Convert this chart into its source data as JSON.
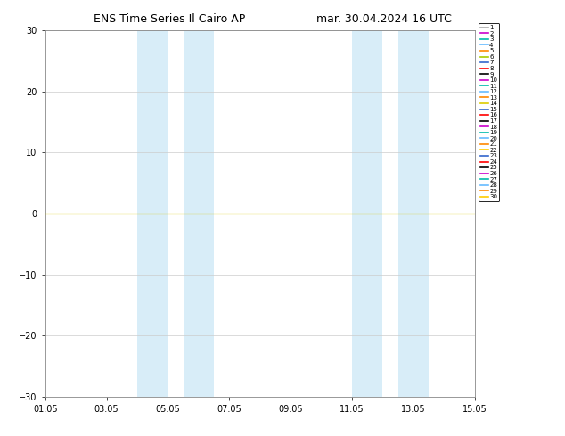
{
  "title": "ENS Time Series Il Cairo AP",
  "subtitle": "mar. 30.04.2024 16 UTC",
  "ylim": [
    -30,
    30
  ],
  "yticks": [
    -30,
    -20,
    -10,
    0,
    10,
    20,
    30
  ],
  "xlim": [
    0,
    14
  ],
  "xtick_positions": [
    0,
    2,
    4,
    6,
    8,
    10,
    12,
    14
  ],
  "xtick_labels": [
    "01.05",
    "03.05",
    "05.05",
    "07.05",
    "09.05",
    "11.05",
    "13.05",
    "15.05"
  ],
  "num_members": 30,
  "member_colors": [
    "#aaaaaa",
    "#cc00cc",
    "#00bbaa",
    "#66bbff",
    "#ff8800",
    "#aacc00",
    "#3366cc",
    "#ff0000",
    "#000000",
    "#cc00cc",
    "#00bbaa",
    "#66bbff",
    "#ff8800",
    "#ddcc00",
    "#3366cc",
    "#ff0000",
    "#000000",
    "#cc00cc",
    "#00bbaa",
    "#66bbff",
    "#ff8800",
    "#ffcc00",
    "#3366cc",
    "#ff0000",
    "#000000",
    "#cc00cc",
    "#00bbaa",
    "#66bbff",
    "#ff8800",
    "#ffcc00"
  ],
  "shaded_regions": [
    [
      3.0,
      4.0
    ],
    [
      4.5,
      5.5
    ],
    [
      10.0,
      11.0
    ],
    [
      11.5,
      12.5
    ]
  ],
  "shaded_color": "#d8edf8",
  "zero_line_color": "#ddcc00",
  "grid_color": "#cccccc",
  "bg_color": "#ffffff",
  "title_fontsize": 9,
  "tick_fontsize": 7,
  "legend_fontsize": 5,
  "line_width": 0.6,
  "fig_width": 6.34,
  "fig_height": 4.9,
  "dpi": 100
}
